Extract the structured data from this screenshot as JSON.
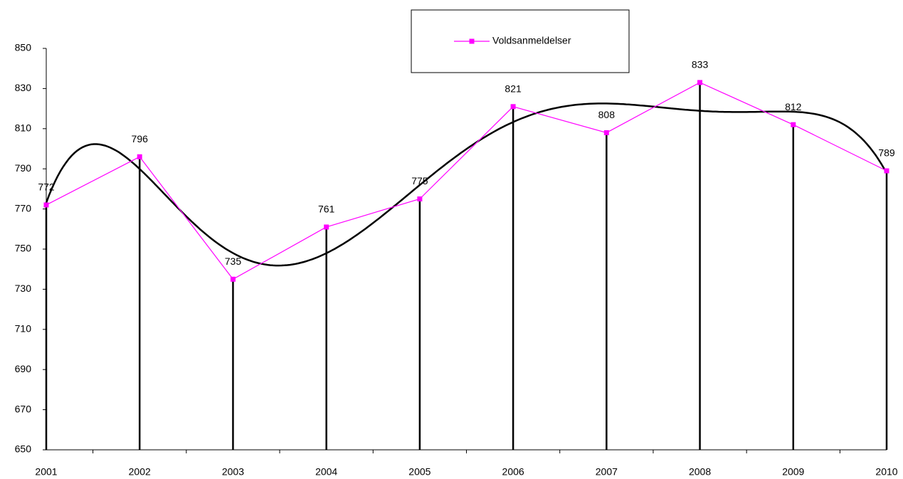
{
  "chart_data": {
    "type": "line",
    "categories": [
      "2001",
      "2002",
      "2003",
      "2004",
      "2005",
      "2006",
      "2007",
      "2008",
      "2009",
      "2010"
    ],
    "series": [
      {
        "name": "Voldsanmeldelser",
        "color": "#ff00ff",
        "values": [
          772,
          796,
          735,
          761,
          775,
          821,
          808,
          833,
          812,
          789
        ]
      }
    ],
    "ylim": [
      650,
      850
    ],
    "yticks": [
      650,
      670,
      690,
      710,
      730,
      750,
      770,
      790,
      810,
      830,
      850
    ],
    "grid": false,
    "drop_lines": true,
    "data_labels": true,
    "legend": "top",
    "trendline": {
      "type": "polynomial",
      "order": 6,
      "color": "#000000"
    }
  }
}
